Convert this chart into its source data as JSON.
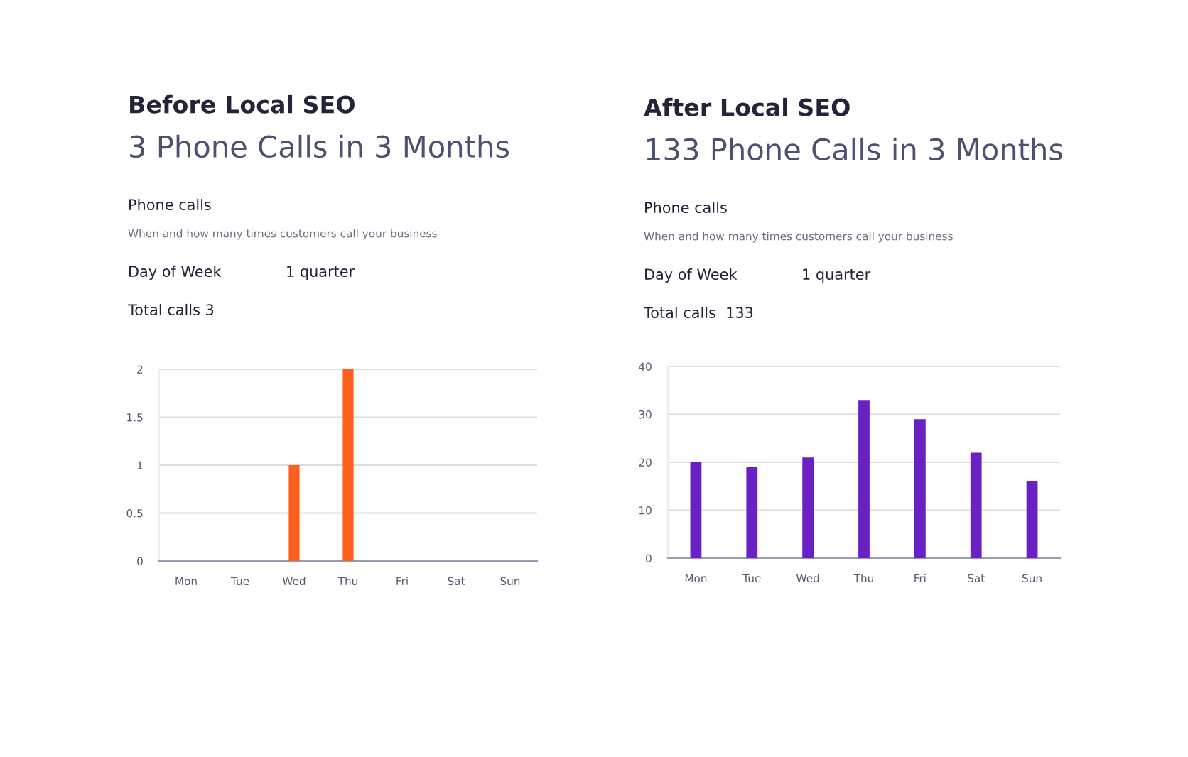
{
  "chart_data": [
    {
      "type": "bar",
      "title": "Before Local SEO",
      "subtitle": "3 Phone Calls in 3 Months",
      "annotations": [
        "Phone calls",
        "When and how many times customers call your business",
        "Day of Week",
        "1 quarter",
        "Total calls 3"
      ],
      "categories": [
        "Mon",
        "Tue",
        "Wed",
        "Thu",
        "Fri",
        "Sat",
        "Sun"
      ],
      "values": [
        0,
        0,
        1,
        2,
        0,
        0,
        0
      ],
      "color": "#ff5f1f",
      "ylim": [
        0,
        2
      ],
      "yticks": [
        0,
        0.5,
        1,
        1.5,
        2
      ],
      "grid": "y"
    },
    {
      "type": "bar",
      "title": "After Local SEO",
      "subtitle": "133 Phone Calls in 3 Months",
      "annotations": [
        "Phone calls",
        "When and how many times customers call your business",
        "Day of Week",
        "1 quarter",
        "Total calls  133"
      ],
      "categories": [
        "Mon",
        "Tue",
        "Wed",
        "Thu",
        "Fri",
        "Sat",
        "Sun"
      ],
      "values": [
        20,
        19,
        21,
        33,
        29,
        22,
        16
      ],
      "color": "#6a21c4",
      "ylim": [
        0,
        40
      ],
      "yticks": [
        0,
        10,
        20,
        30,
        40
      ],
      "grid": "y"
    }
  ]
}
